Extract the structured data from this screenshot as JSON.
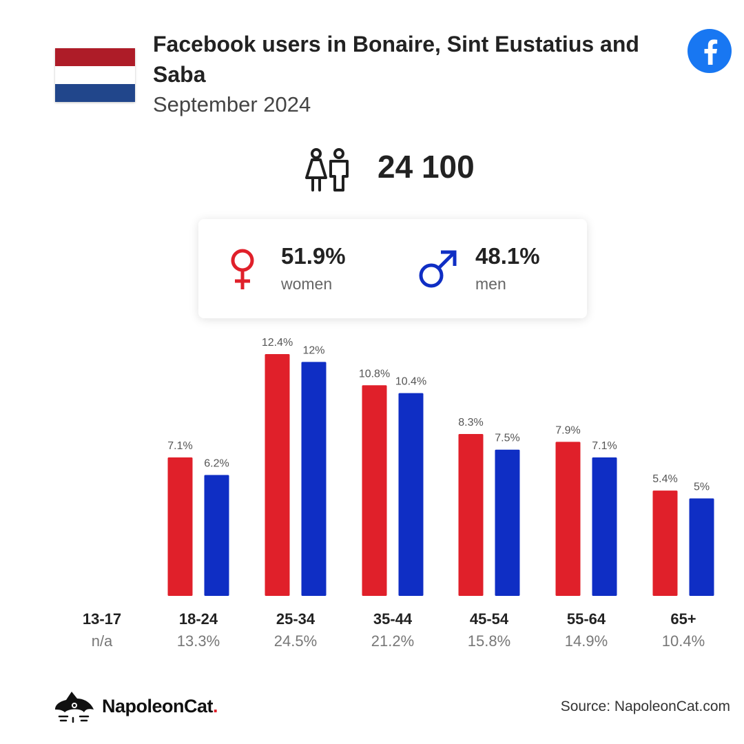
{
  "header": {
    "title": "Facebook users in Bonaire, Sint Eustatius and Saba",
    "subtitle": "September 2024",
    "flag_colors": [
      "#ae1c28",
      "#ffffff",
      "#21468b"
    ],
    "brand_icon": "facebook-icon",
    "brand_color": "#1877f2"
  },
  "summary": {
    "total_users": "24 100",
    "people_icon": "people-icon"
  },
  "gender": {
    "women": {
      "value": "51.9%",
      "label": "women",
      "color": "#e0202a",
      "icon": "female-icon"
    },
    "men": {
      "value": "48.1%",
      "label": "men",
      "color": "#0f2ec4",
      "icon": "male-icon"
    }
  },
  "chart_data": {
    "type": "bar",
    "categories": [
      "13-17",
      "18-24",
      "25-34",
      "35-44",
      "45-54",
      "55-64",
      "65+"
    ],
    "category_shares": [
      "n/a",
      "13.3%",
      "24.5%",
      "21.2%",
      "15.8%",
      "14.9%",
      "10.4%"
    ],
    "series": [
      {
        "name": "women",
        "color": "#e0202a",
        "values": [
          null,
          7.1,
          12.4,
          10.8,
          8.3,
          7.9,
          5.4
        ],
        "labels": [
          "",
          "7.1%",
          "12.4%",
          "10.8%",
          "8.3%",
          "7.9%",
          "5.4%"
        ]
      },
      {
        "name": "men",
        "color": "#0f2ec4",
        "values": [
          null,
          6.2,
          12,
          10.4,
          7.5,
          7.1,
          5
        ],
        "labels": [
          "",
          "6.2%",
          "12%",
          "10.4%",
          "7.5%",
          "7.1%",
          "5%"
        ]
      }
    ],
    "ylim": [
      0,
      12.4
    ],
    "grid": false
  },
  "footer": {
    "brand_name": "NapoleonCat",
    "brand_dot": ".",
    "logo_icon": "napoleoncat-logo-icon",
    "source": "Source: NapoleonCat.com"
  }
}
